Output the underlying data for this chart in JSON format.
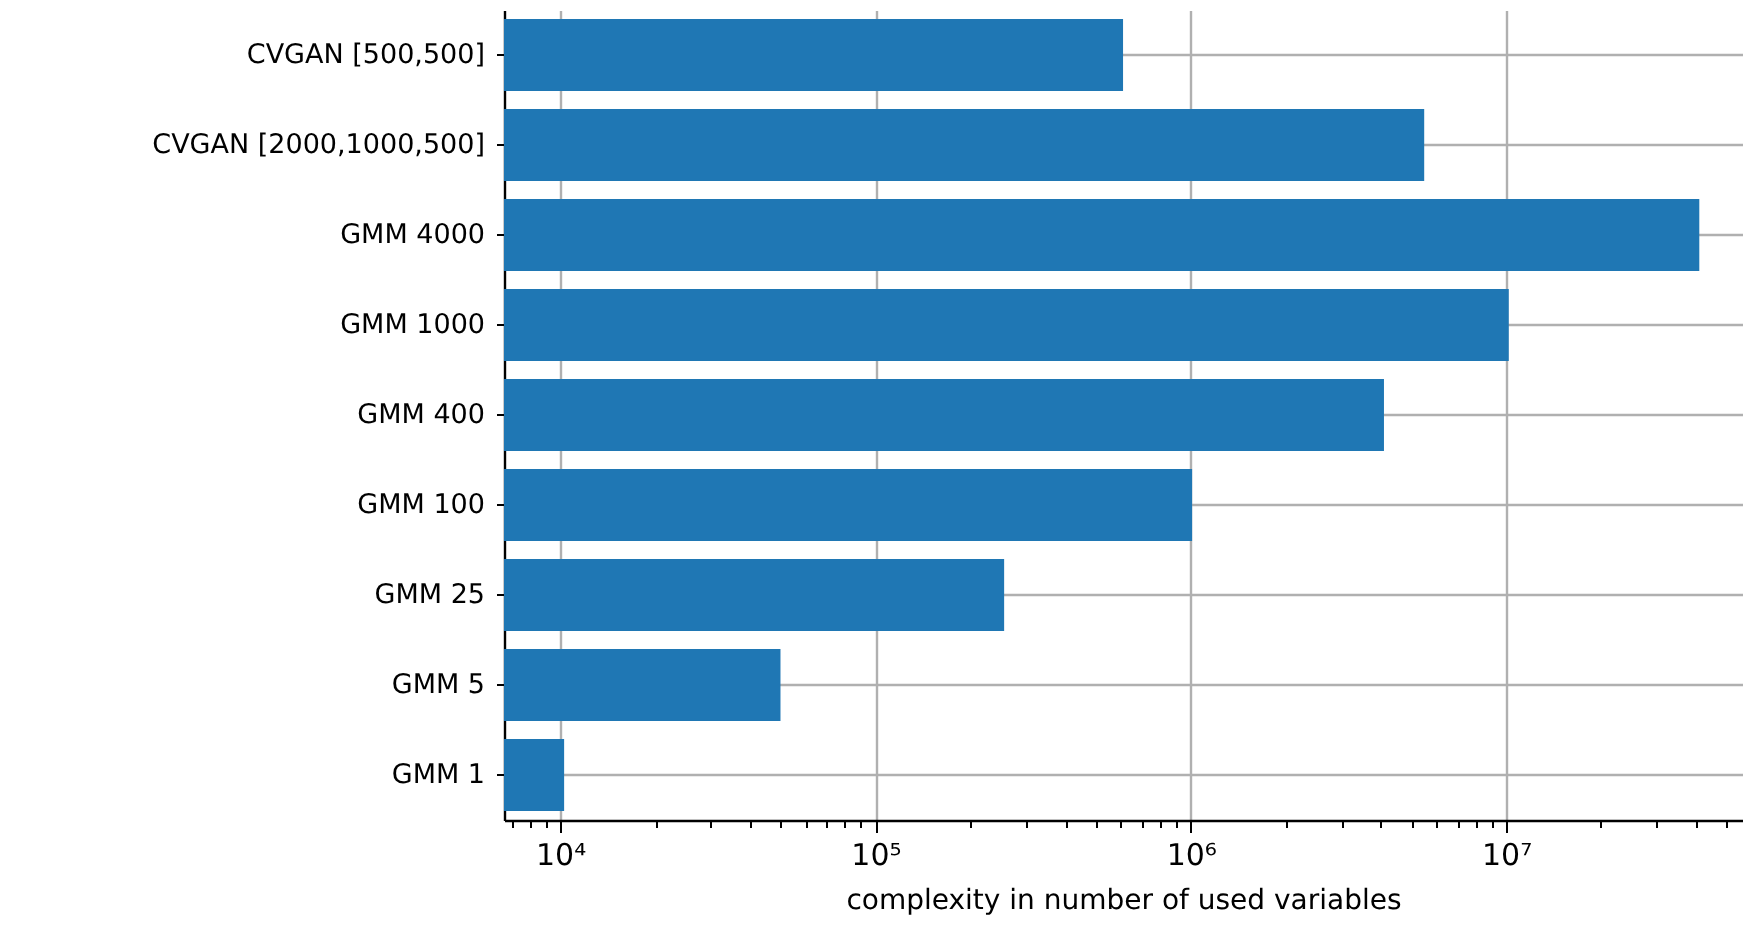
{
  "chart_data": {
    "type": "bar",
    "orientation": "horizontal",
    "xlabel": "complexity in number of used variables",
    "categories": [
      "CVGAN [500,500]",
      "CVGAN [2000,1000,500]",
      "GMM 4000",
      "GMM 1000",
      "GMM 400",
      "GMM 100",
      "GMM 25",
      "GMM 5",
      "GMM 1"
    ],
    "values": [
      610000,
      5500000,
      41000000,
      10200000,
      4100000,
      1010000,
      256000,
      50000,
      10300
    ],
    "color": "#1f77b4",
    "log": "x",
    "grid": true,
    "xlim": [
      6640,
      56000000
    ],
    "xticks": [
      {
        "value": 7000,
        "label": null
      },
      {
        "value": 8000,
        "label": null
      },
      {
        "value": 9000,
        "label": null
      },
      {
        "value": 10000,
        "label": "10⁴"
      },
      {
        "value": 20000,
        "label": null
      },
      {
        "value": 30000,
        "label": null
      },
      {
        "value": 40000,
        "label": null
      },
      {
        "value": 50000,
        "label": null
      },
      {
        "value": 60000,
        "label": null
      },
      {
        "value": 70000,
        "label": null
      },
      {
        "value": 80000,
        "label": null
      },
      {
        "value": 90000,
        "label": null
      },
      {
        "value": 100000,
        "label": "10⁵"
      },
      {
        "value": 200000,
        "label": null
      },
      {
        "value": 300000,
        "label": null
      },
      {
        "value": 400000,
        "label": null
      },
      {
        "value": 500000,
        "label": null
      },
      {
        "value": 600000,
        "label": null
      },
      {
        "value": 700000,
        "label": null
      },
      {
        "value": 800000,
        "label": null
      },
      {
        "value": 900000,
        "label": null
      },
      {
        "value": 1000000,
        "label": "10⁶"
      },
      {
        "value": 2000000,
        "label": null
      },
      {
        "value": 3000000,
        "label": null
      },
      {
        "value": 4000000,
        "label": null
      },
      {
        "value": 5000000,
        "label": null
      },
      {
        "value": 6000000,
        "label": null
      },
      {
        "value": 7000000,
        "label": null
      },
      {
        "value": 8000000,
        "label": null
      },
      {
        "value": 9000000,
        "label": null
      },
      {
        "value": 10000000,
        "label": "10⁷"
      },
      {
        "value": 20000000,
        "label": null
      },
      {
        "value": 30000000,
        "label": null
      },
      {
        "value": 40000000,
        "label": null
      },
      {
        "value": 50000000,
        "label": null
      }
    ]
  }
}
